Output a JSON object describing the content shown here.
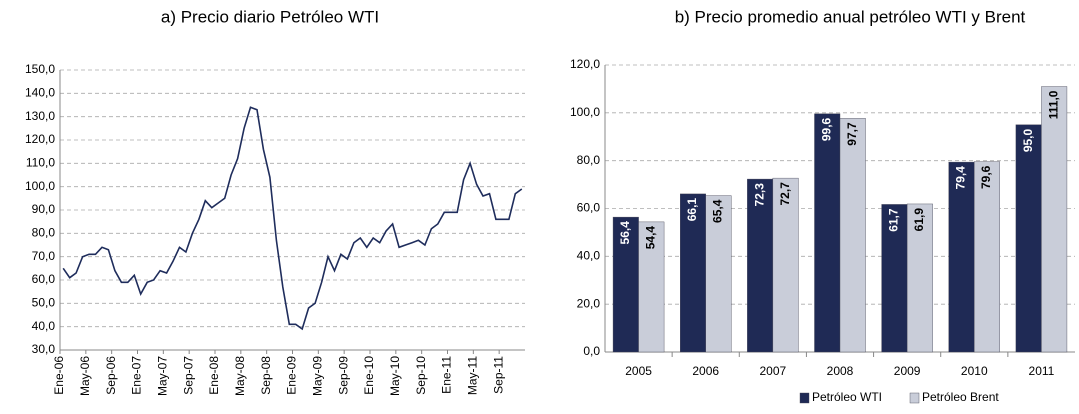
{
  "chart_data": [
    {
      "type": "line",
      "title": "a) Precio diario Petróleo WTI",
      "categories": [
        "Ene-06",
        null,
        null,
        null,
        "May-06",
        null,
        null,
        null,
        "Sep-06",
        null,
        null,
        null,
        "Ene-07",
        null,
        null,
        null,
        "May-07",
        null,
        null,
        null,
        "Sep-07",
        null,
        null,
        null,
        "Ene-08",
        null,
        null,
        null,
        "May-08",
        null,
        null,
        null,
        "Sep-08",
        null,
        null,
        null,
        "Ene-09",
        null,
        null,
        null,
        "May-09",
        null,
        null,
        null,
        "Sep-09",
        null,
        null,
        null,
        "Ene-10",
        null,
        null,
        null,
        "May-10",
        null,
        null,
        null,
        "Sep-10",
        null,
        null,
        null,
        "Ene-11",
        null,
        null,
        null,
        "May-11",
        null,
        null,
        null,
        "Sep-11",
        null,
        null,
        null
      ],
      "series": [
        {
          "name": "Petróleo WTI",
          "color": "#1f2d5c",
          "values": [
            65,
            61,
            63,
            70,
            71,
            71,
            74,
            73,
            64,
            59,
            59,
            62,
            54,
            59,
            60,
            64,
            63,
            68,
            74,
            72,
            80,
            86,
            94,
            91,
            93,
            95,
            105,
            112,
            125,
            134,
            133,
            116,
            104,
            77,
            57,
            41,
            41,
            39,
            48,
            50,
            59,
            70,
            64,
            71,
            69,
            76,
            78,
            74,
            78,
            76,
            81,
            84,
            74,
            75,
            76,
            77,
            75,
            82,
            84,
            89,
            89,
            89,
            103,
            110,
            101,
            96,
            97,
            86,
            86,
            86,
            97,
            99
          ]
        }
      ],
      "ylim": [
        30,
        150
      ],
      "yticks": [
        {
          "value": 30,
          "label": "30,0"
        },
        {
          "value": 40,
          "label": "40,0"
        },
        {
          "value": 50,
          "label": "50,0"
        },
        {
          "value": 60,
          "label": "60,0"
        },
        {
          "value": 70,
          "label": "70,0"
        },
        {
          "value": 80,
          "label": "80,0"
        },
        {
          "value": 90,
          "label": "90,0"
        },
        {
          "value": 100,
          "label": "100,0"
        },
        {
          "value": 110,
          "label": "110,0"
        },
        {
          "value": 120,
          "label": "120,0"
        },
        {
          "value": 130,
          "label": "130,0"
        },
        {
          "value": 140,
          "label": "140,0"
        },
        {
          "value": 150,
          "label": "150,0"
        }
      ],
      "grid": true
    },
    {
      "type": "bar",
      "title": "b) Precio promedio anual petróleo WTI y Brent",
      "categories": [
        "2005",
        "2006",
        "2007",
        "2008",
        "2009",
        "2010",
        "2011"
      ],
      "series": [
        {
          "name": "Petróleo WTI",
          "color": "#1f2a55",
          "values": [
            56.4,
            66.1,
            72.3,
            99.6,
            61.7,
            79.4,
            95.0
          ],
          "value_labels": [
            "56,4",
            "66,1",
            "72,3",
            "99,6",
            "61,7",
            "79,4",
            "95,0"
          ]
        },
        {
          "name": "Petróleo Brent",
          "color": "#c9cdd9",
          "values": [
            54.4,
            65.4,
            72.7,
            97.7,
            61.9,
            79.6,
            111.0
          ],
          "value_labels": [
            "54,4",
            "65,4",
            "72,7",
            "97,7",
            "61,9",
            "79,6",
            "111,0"
          ]
        }
      ],
      "ylim": [
        0,
        120
      ],
      "yticks": [
        {
          "value": 0,
          "label": "0,0"
        },
        {
          "value": 20,
          "label": "20,0"
        },
        {
          "value": 40,
          "label": "40,0"
        },
        {
          "value": 60,
          "label": "60,0"
        },
        {
          "value": 80,
          "label": "80,0"
        },
        {
          "value": 100,
          "label": "100,0"
        },
        {
          "value": 120,
          "label": "120,0"
        }
      ],
      "grid": true,
      "legend": "bottom"
    }
  ]
}
